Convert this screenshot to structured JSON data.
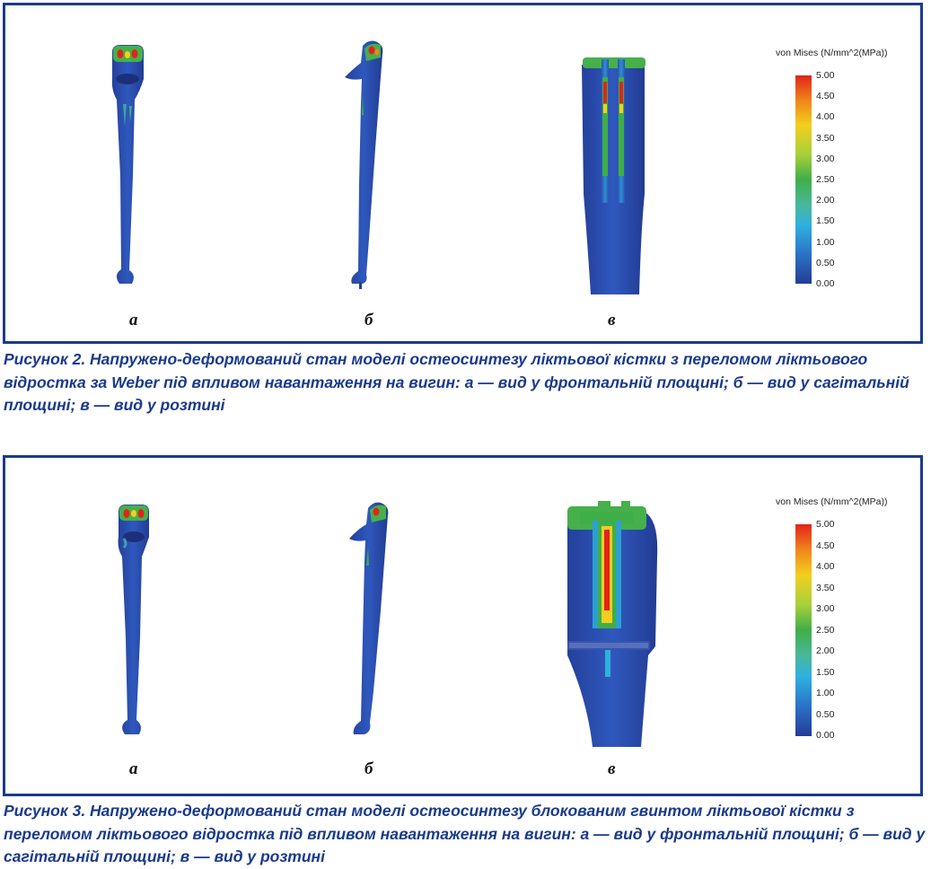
{
  "figure2": {
    "sublabels": [
      "а",
      "б",
      "в"
    ],
    "legend_title": "von Mises (N/mm^2(MPa))",
    "ticks": [
      "5.00",
      "4.50",
      "4.00",
      "3.50",
      "3.00",
      "2.50",
      "2.00",
      "1.50",
      "1.00",
      "0.50",
      "0.00"
    ],
    "caption": "Рисунок 2. Напружено-деформований стан моделі остеосинтезу ліктьової кістки з переломом ліктьового відростка за Weber під впливом навантаження на вигин: а — вид у фронтальній площині; б — вид у сагітальній площині; в — вид у розтині"
  },
  "figure3": {
    "sublabels": [
      "а",
      "б",
      "в"
    ],
    "legend_title": "von Mises (N/mm^2(MPa))",
    "ticks": [
      "5.00",
      "4.50",
      "4.00",
      "3.50",
      "3.00",
      "2.50",
      "2.00",
      "1.50",
      "1.00",
      "0.50",
      "0.00"
    ],
    "caption": "Рисунок 3. Напружено-деформований стан моделі остеосинтезу блокованим гвинтом ліктьової кістки з переломом ліктьового відростка під впливом навантаження на вигин: а — вид у фронтальній площині; б — вид у сагітальній площині; в — вид у розтині"
  },
  "colors": {
    "frame": "#1a3a8c",
    "bone": "#2b4fb0",
    "stress_high": "#e3231b",
    "stress_mid": "#3fae49",
    "stress_low": "#243c97"
  }
}
